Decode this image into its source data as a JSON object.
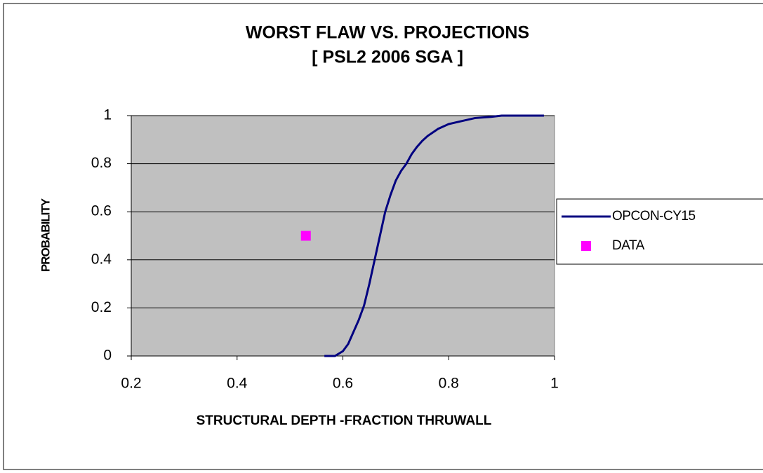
{
  "chart_data": {
    "type": "scatter",
    "title": "WORST FLAW VS. PROJECTIONS",
    "subtitle": "[ PSL2 2006 SGA ]",
    "x_label": "STRUCTURAL DEPTH -FRACTION THRUWALL",
    "y_label": "PROBABILITY",
    "xlim": [
      0.2,
      1
    ],
    "xticks": [
      0.2,
      0.4,
      0.6,
      0.8,
      1
    ],
    "ylim": [
      0,
      1
    ],
    "yticks": [
      0,
      0.2,
      0.4,
      0.6,
      0.8,
      1
    ],
    "grid": true,
    "plot_background": "#c0c0c0",
    "legend": "right",
    "series": [
      {
        "name": "OPCON-CY15",
        "color": "#000080",
        "style": "line",
        "x": [
          0.565,
          0.585,
          0.6,
          0.61,
          0.62,
          0.63,
          0.64,
          0.65,
          0.66,
          0.67,
          0.68,
          0.69,
          0.7,
          0.71,
          0.72,
          0.73,
          0.74,
          0.75,
          0.76,
          0.78,
          0.8,
          0.82,
          0.85,
          0.88,
          0.9,
          0.95,
          0.98
        ],
        "values": [
          0,
          0,
          0.02,
          0.05,
          0.1,
          0.15,
          0.21,
          0.3,
          0.4,
          0.5,
          0.6,
          0.67,
          0.73,
          0.77,
          0.8,
          0.84,
          0.87,
          0.895,
          0.915,
          0.945,
          0.965,
          0.975,
          0.99,
          0.995,
          1,
          1,
          1
        ]
      },
      {
        "name": "DATA",
        "color": "#ff00ff",
        "style": "marker",
        "x": [
          0.53
        ],
        "values": [
          0.5
        ]
      }
    ]
  }
}
